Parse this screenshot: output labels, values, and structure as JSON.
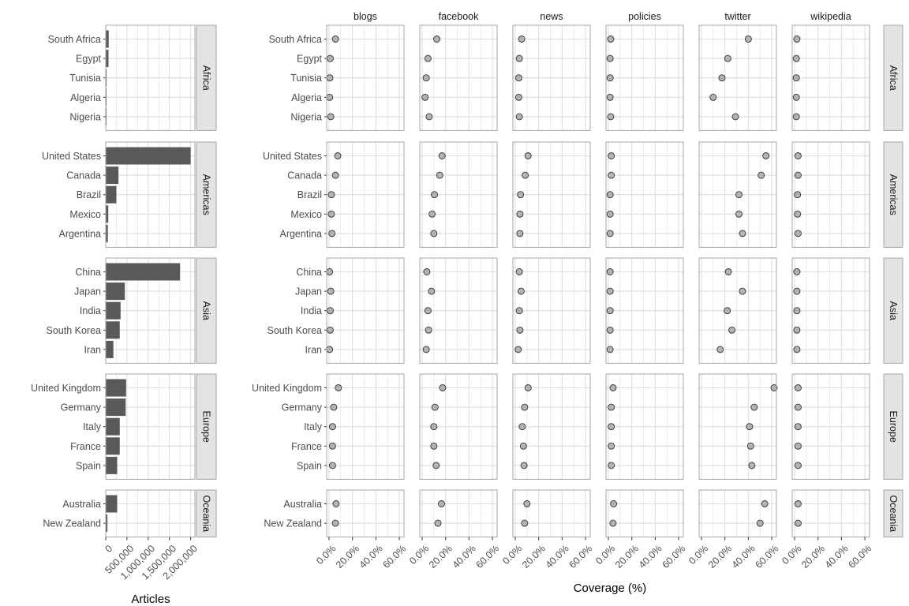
{
  "colors": {
    "bar": "#595959",
    "point_fill": "#b3b3b3",
    "point_stroke": "#333333",
    "grid": "#dedede",
    "panel_border": "#a6a6a6",
    "strip_bg": "#e3e3e3",
    "strip_border": "#a6a6a6",
    "tick_text": "#4d4d4d"
  },
  "chart_data": [
    {
      "type": "bar",
      "orientation": "horizontal",
      "xlabel": "Articles",
      "ylabel": "",
      "xlim": [
        0,
        2100000
      ],
      "x_ticks": [
        0,
        500000,
        1000000,
        1500000,
        2000000
      ],
      "x_tick_labels": [
        "0",
        "500,000",
        "1,000,000",
        "1,500,000",
        "2,000,000"
      ],
      "grid": true,
      "facets": [
        {
          "region": "Africa",
          "countries": [
            "South Africa",
            "Egypt",
            "Tunisia",
            "Algeria",
            "Nigeria"
          ],
          "values": [
            70000,
            65000,
            20000,
            18000,
            15000
          ]
        },
        {
          "region": "Americas",
          "countries": [
            "United States",
            "Canada",
            "Brazil",
            "Mexico",
            "Argentina"
          ],
          "values": [
            2000000,
            300000,
            250000,
            60000,
            50000
          ]
        },
        {
          "region": "Asia",
          "countries": [
            "China",
            "Japan",
            "India",
            "South Korea",
            "Iran"
          ],
          "values": [
            1750000,
            450000,
            350000,
            330000,
            180000
          ]
        },
        {
          "region": "Europe",
          "countries": [
            "United Kingdom",
            "Germany",
            "Italy",
            "France",
            "Spain"
          ],
          "values": [
            480000,
            470000,
            330000,
            330000,
            270000
          ]
        },
        {
          "region": "Oceania",
          "countries": [
            "Australia",
            "New Zealand"
          ],
          "values": [
            270000,
            40000
          ]
        }
      ]
    },
    {
      "type": "scatter",
      "xlabel": "Coverage (%)",
      "ylabel": "",
      "xlim": [
        -2,
        64
      ],
      "x_ticks": [
        0,
        20,
        40,
        60
      ],
      "x_tick_labels": [
        "0.0%",
        "20.0%",
        "40.0%",
        "60.0%"
      ],
      "grid": true,
      "columns": [
        "blogs",
        "facebook",
        "news",
        "policies",
        "twitter",
        "wikipedia"
      ],
      "facets": [
        {
          "region": "Africa",
          "countries": [
            "South Africa",
            "Egypt",
            "Tunisia",
            "Algeria",
            "Nigeria"
          ],
          "values": {
            "blogs": [
              5.5,
              1,
              0.7,
              0.5,
              1.5
            ],
            "facebook": [
              12.5,
              5,
              3.5,
              2.5,
              6
            ],
            "news": [
              5.5,
              3.5,
              3,
              3,
              3.5
            ],
            "policies": [
              2,
              1.5,
              1.5,
              1.5,
              2
            ],
            "twitter": [
              40,
              22.5,
              17.5,
              10,
              29
            ],
            "wikipedia": [
              2,
              1.5,
              1.5,
              1.5,
              1.5
            ]
          }
        },
        {
          "region": "Americas",
          "countries": [
            "United States",
            "Canada",
            "Brazil",
            "Mexico",
            "Argentina"
          ],
          "values": {
            "blogs": [
              7.5,
              5.5,
              2,
              2,
              2.5
            ],
            "facebook": [
              17,
              15,
              10.5,
              8.5,
              10
            ],
            "news": [
              11,
              8.5,
              4.5,
              4,
              4
            ],
            "policies": [
              2.5,
              2.5,
              1.5,
              1.5,
              1.5
            ],
            "twitter": [
              55,
              51,
              32,
              32,
              35
            ],
            "wikipedia": [
              3,
              3,
              2.5,
              2.5,
              3
            ]
          }
        },
        {
          "region": "Asia",
          "countries": [
            "China",
            "Japan",
            "India",
            "South Korea",
            "Iran"
          ],
          "values": {
            "blogs": [
              0.5,
              1.5,
              1,
              1,
              0.5
            ],
            "facebook": [
              4,
              8,
              5,
              5.5,
              3.5
            ],
            "news": [
              3.5,
              5,
              3.5,
              4,
              2.5
            ],
            "policies": [
              1.5,
              1.5,
              1.5,
              1.5,
              1.5
            ],
            "twitter": [
              23,
              35,
              22,
              26,
              16
            ],
            "wikipedia": [
              2,
              2,
              2,
              2,
              2
            ]
          }
        },
        {
          "region": "Europe",
          "countries": [
            "United Kingdom",
            "Germany",
            "Italy",
            "France",
            "Spain"
          ],
          "values": {
            "blogs": [
              8,
              4,
              3,
              3,
              3
            ],
            "facebook": [
              17.5,
              11,
              10,
              10,
              12
            ],
            "news": [
              11,
              8,
              6,
              7,
              7.5
            ],
            "policies": [
              4,
              2.5,
              2.5,
              2.5,
              2.5
            ],
            "twitter": [
              62,
              45,
              41,
              42,
              43
            ],
            "wikipedia": [
              3,
              3,
              3,
              3,
              3
            ]
          }
        },
        {
          "region": "Oceania",
          "countries": [
            "Australia",
            "New Zealand"
          ],
          "values": {
            "blogs": [
              6,
              5.5
            ],
            "facebook": [
              16.5,
              13.5
            ],
            "news": [
              10,
              8
            ],
            "policies": [
              4.5,
              4
            ],
            "twitter": [
              54,
              50
            ],
            "wikipedia": [
              3,
              3
            ]
          }
        }
      ]
    }
  ]
}
